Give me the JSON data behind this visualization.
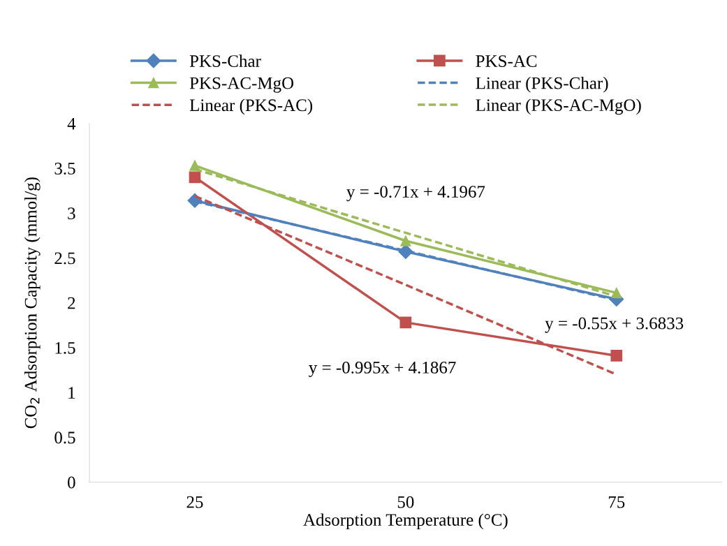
{
  "chart_data": {
    "type": "line",
    "xlabel": "Adsorption Temperature (°C)",
    "ylabel": "CO$_{2}$ Adsorption Capacity (mmol/g)",
    "categories": [
      "25",
      "50",
      "75"
    ],
    "series": [
      {
        "name": "PKS-Char",
        "color": "#4f81bd",
        "values": [
          3.14,
          2.57,
          2.04
        ],
        "marker": "diamond",
        "line_style": "solid"
      },
      {
        "name": "PKS-AC",
        "color": "#c0504d",
        "values": [
          3.4,
          1.78,
          1.41
        ],
        "marker": "square",
        "line_style": "solid"
      },
      {
        "name": "PKS-AC-MgO",
        "color": "#9bbb59",
        "values": [
          3.53,
          2.69,
          2.11
        ],
        "marker": "triangle",
        "line_style": "solid"
      },
      {
        "name": "Linear (PKS-Char)",
        "color": "#4f81bd",
        "values": [
          3.13,
          2.58,
          2.03
        ],
        "marker": "none",
        "line_style": "dashed"
      },
      {
        "name": "Linear (PKS-AC)",
        "color": "#c0504d",
        "values": [
          3.19,
          2.2,
          1.2
        ],
        "marker": "none",
        "line_style": "dashed"
      },
      {
        "name": "Linear (PKS-AC-MgO)",
        "color": "#9bbb59",
        "values": [
          3.49,
          2.78,
          2.07
        ],
        "marker": "none",
        "line_style": "dashed"
      }
    ],
    "ylim": [
      0,
      4
    ],
    "yticks": [
      0,
      0.5,
      1,
      1.5,
      2,
      2.5,
      3,
      3.5,
      4
    ],
    "grid": false,
    "legend": "top",
    "annotations": [
      "y = -0.71x + 4.1967",
      "y = -0.55x + 3.6833",
      "y = -0.995x + 4.1867"
    ]
  }
}
